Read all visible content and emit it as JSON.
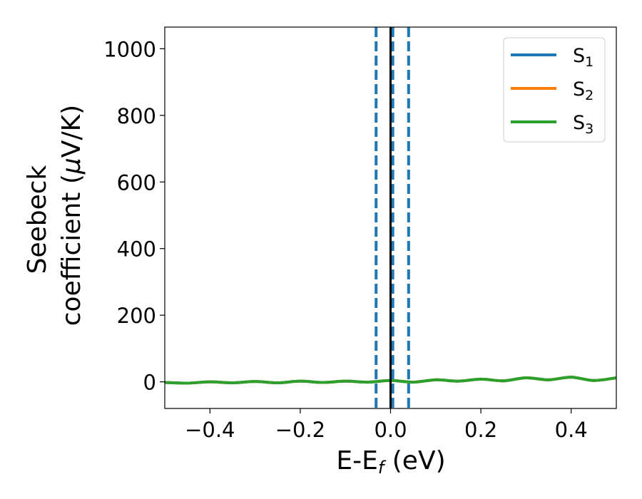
{
  "chart_data": {
    "type": "line",
    "xlabel_main": "E-E",
    "xlabel_sub": "f",
    "xlabel_unit": " (eV)",
    "ylabel_line1": "Seebeck",
    "ylabel_line2_pre": "coefficient  (",
    "ylabel_mu": "μ",
    "ylabel_line2_post": "V/K)",
    "xlim": [
      -0.5,
      0.5
    ],
    "ylim": [
      -80,
      1065
    ],
    "x_ticks": [
      -0.4,
      -0.2,
      0.0,
      0.2,
      0.4
    ],
    "x_tick_labels": [
      "−0.4",
      "−0.2",
      "0.0",
      "0.2",
      "0.4"
    ],
    "y_ticks": [
      0,
      200,
      400,
      600,
      800,
      1000
    ],
    "y_tick_labels": [
      "0",
      "200",
      "400",
      "600",
      "800",
      "1000"
    ],
    "legend_position": "top-right",
    "series": [
      {
        "name": "S",
        "sub": "1",
        "color": "#1f77b4",
        "x": [
          -0.5,
          -0.45,
          -0.4,
          -0.35,
          -0.3,
          -0.25,
          -0.2,
          -0.15,
          -0.1,
          -0.05,
          0.0,
          0.05,
          0.1,
          0.15,
          0.2,
          0.25,
          0.3,
          0.35,
          0.4,
          0.45,
          0.5
        ],
        "y": [
          -2,
          -4,
          0,
          -3,
          1,
          -3,
          2,
          -2,
          2,
          -1,
          4,
          -1,
          6,
          2,
          8,
          3,
          12,
          6,
          14,
          4,
          12
        ]
      },
      {
        "name": "S",
        "sub": "2",
        "color": "#ff7f0e",
        "x": [
          -0.5,
          -0.45,
          -0.4,
          -0.35,
          -0.3,
          -0.25,
          -0.2,
          -0.15,
          -0.1,
          -0.05,
          0.0,
          0.05,
          0.1,
          0.15,
          0.2,
          0.25,
          0.3,
          0.35,
          0.4,
          0.45,
          0.5
        ],
        "y": [
          -2,
          -4,
          0,
          -3,
          1,
          -3,
          2,
          -2,
          2,
          -1,
          4,
          -1,
          6,
          2,
          8,
          3,
          12,
          6,
          14,
          4,
          12
        ]
      },
      {
        "name": "S",
        "sub": "3",
        "color": "#2ca02c",
        "x": [
          -0.5,
          -0.45,
          -0.4,
          -0.35,
          -0.3,
          -0.25,
          -0.2,
          -0.15,
          -0.1,
          -0.05,
          0.0,
          0.05,
          0.1,
          0.15,
          0.2,
          0.25,
          0.3,
          0.35,
          0.4,
          0.45,
          0.5
        ],
        "y": [
          -2,
          -4,
          0,
          -3,
          1,
          -3,
          2,
          -2,
          2,
          -1,
          4,
          -1,
          6,
          2,
          8,
          3,
          12,
          6,
          14,
          4,
          12
        ]
      }
    ],
    "vlines": [
      {
        "x": -0.032,
        "style": "dashed",
        "color": "#1f77b4"
      },
      {
        "x": 0.005,
        "style": "dashed",
        "color": "#1f77b4"
      },
      {
        "x": 0.04,
        "style": "dashed",
        "color": "#1f77b4"
      },
      {
        "x": 0.0,
        "style": "solid",
        "color": "#000000"
      }
    ]
  }
}
